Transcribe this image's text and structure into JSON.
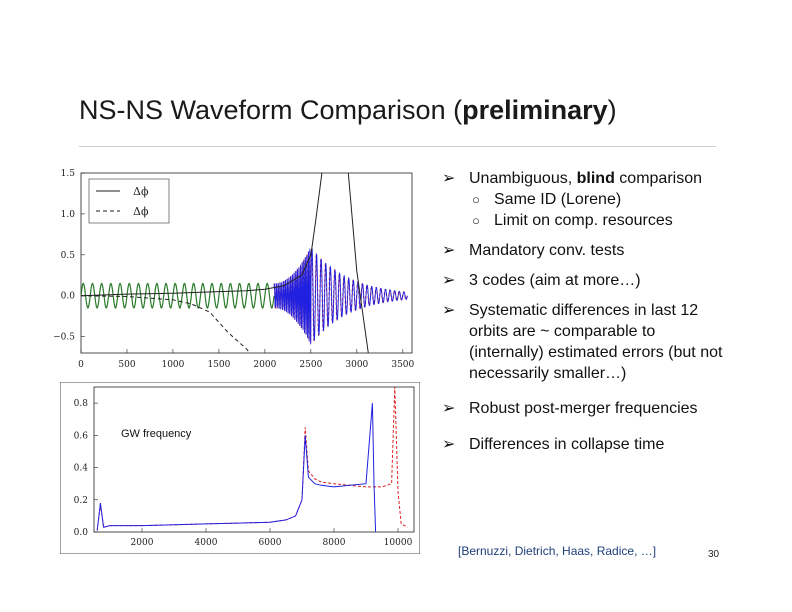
{
  "slide": {
    "title_pre": "NS-NS Waveform Comparison (",
    "title_bold": "preliminary",
    "title_post": ")",
    "page_number": "30",
    "citation": "[Bernuzzi, Dietrich, Haas, Radice, …]"
  },
  "bullets": [
    {
      "pre": "Unambiguous, ",
      "bold": "blind",
      "post": " comparison",
      "subitems": [
        "Same ID (Lorene)",
        "Limit on comp. resources"
      ]
    },
    {
      "text": "Mandatory conv. tests"
    },
    {
      "text": "3 codes (aim at more…)"
    },
    {
      "text": "Systematic differences in last 12 orbits are ~ comparable to (internally) estimated errors (but not necessarily smaller…)"
    },
    {
      "text": "Robust post-merger frequencies"
    },
    {
      "text": "Differences in collapse time"
    }
  ],
  "colors": {
    "red": "#e02020",
    "blue": "#2020e0",
    "green": "#2a7a2a",
    "black": "#222222"
  },
  "chart_data": [
    {
      "type": "line",
      "title": "",
      "xlim": [
        0,
        3600
      ],
      "ylim": [
        -0.7,
        1.5
      ],
      "x_ticks": [
        "0",
        "500",
        "1000",
        "1500",
        "2000",
        "2500",
        "3000",
        "3500"
      ],
      "y_ticks": [
        "1.5",
        "1.0",
        "0.5",
        "0.0",
        "−0.5"
      ],
      "legend": {
        "placement": "top-left",
        "entries": [
          "Δϕ",
          "Δϕ"
        ]
      },
      "series": [
        {
          "name": "Δϕ",
          "style": "solid",
          "x": [
            0,
            500,
            1000,
            1500,
            1800,
            2000,
            2200,
            2400,
            2500,
            2550,
            2620,
            2700,
            2800,
            2900,
            3000,
            3100,
            3150
          ],
          "y": [
            0.0,
            0.02,
            0.03,
            0.05,
            0.06,
            0.08,
            0.12,
            0.25,
            0.5,
            0.9,
            1.5,
            1.9,
            2.1,
            1.6,
            0.3,
            -0.5,
            -0.9
          ]
        },
        {
          "name": "Δϕ",
          "style": "dashed",
          "x": [
            0,
            500,
            1000,
            1200,
            1400,
            1600,
            1800,
            1900
          ],
          "y": [
            0.0,
            -0.01,
            -0.05,
            -0.1,
            -0.2,
            -0.45,
            -0.65,
            -0.8
          ]
        },
        {
          "style": "green oscillation",
          "x": [
            0,
            2100
          ],
          "amplitude": 0.15,
          "cycles": 21
        },
        {
          "style": "blue/red oscillation",
          "x": [
            2100,
            3550
          ],
          "amplitude_peak": 0.6,
          "peak_x": 2500
        }
      ]
    },
    {
      "type": "line",
      "title": "",
      "annotation": "GW frequency",
      "xlim": [
        500,
        10500
      ],
      "ylim": [
        0.0,
        0.9
      ],
      "x_ticks": [
        "2000",
        "4000",
        "6000",
        "8000",
        "10000"
      ],
      "y_ticks": [
        "0.8",
        "0.6",
        "0.4",
        "0.2",
        "0.0"
      ],
      "series": [
        {
          "style": "blue solid",
          "x": [
            600,
            700,
            800,
            1000,
            2000,
            3000,
            4000,
            5000,
            6000,
            6500,
            6800,
            7000,
            7100,
            7200,
            7400,
            7600,
            8000,
            8500,
            9000,
            9200,
            9250,
            9300
          ],
          "y": [
            0.01,
            0.18,
            0.03,
            0.04,
            0.04,
            0.045,
            0.05,
            0.055,
            0.06,
            0.075,
            0.1,
            0.2,
            0.6,
            0.34,
            0.3,
            0.29,
            0.28,
            0.29,
            0.3,
            0.8,
            0.3,
            0.0
          ]
        },
        {
          "style": "red dashed",
          "x": [
            600,
            700,
            800,
            1000,
            2000,
            3000,
            4000,
            5000,
            6000,
            6500,
            6800,
            7000,
            7100,
            7200,
            7400,
            7600,
            8000,
            8500,
            9000,
            9500,
            9800,
            9900,
            10000,
            10100,
            10300
          ],
          "y": [
            0.01,
            0.17,
            0.03,
            0.04,
            0.04,
            0.045,
            0.05,
            0.055,
            0.06,
            0.075,
            0.1,
            0.2,
            0.65,
            0.38,
            0.33,
            0.31,
            0.3,
            0.29,
            0.28,
            0.28,
            0.3,
            0.9,
            0.25,
            0.05,
            0.03
          ]
        }
      ]
    }
  ]
}
